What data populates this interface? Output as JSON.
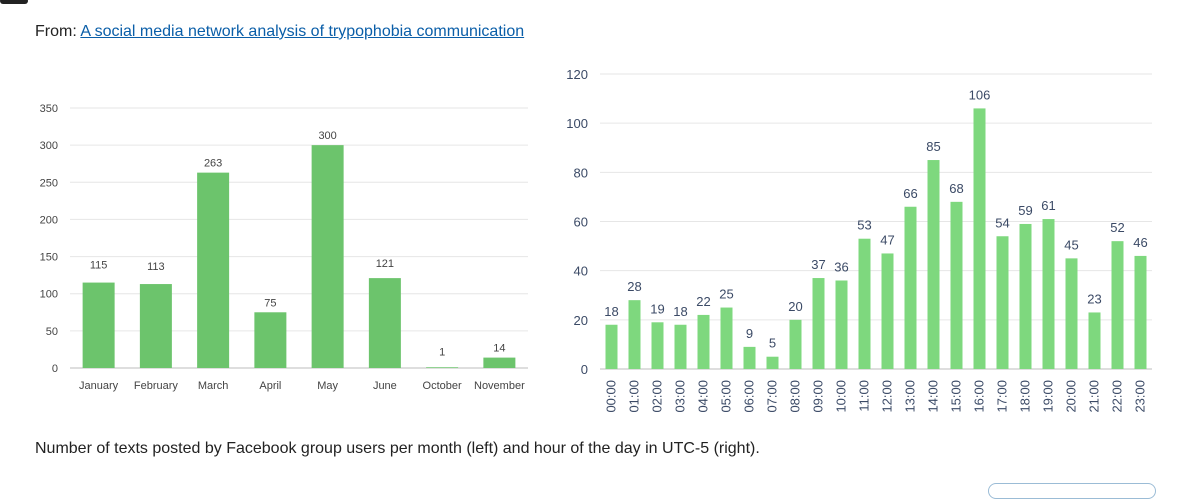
{
  "header": {
    "from_label": "From: ",
    "link_text": "A social media network analysis of trypophobia communication"
  },
  "caption": "Number of texts posted by Facebook group users per month (left) and hour of the day in UTC-5 (right).",
  "colors": {
    "bar_left": "#6cc46c",
    "bar_right": "#7ed87e",
    "grid": "#e6e6e6",
    "left_text": "#444444",
    "right_text": "#3b4a66",
    "link": "#0a5ea8"
  },
  "chart_data": [
    {
      "type": "bar",
      "categories": [
        "January",
        "February",
        "March",
        "April",
        "May",
        "June",
        "October",
        "November"
      ],
      "values": [
        115,
        113,
        263,
        75,
        300,
        121,
        1,
        14
      ],
      "yticks": [
        0,
        50,
        100,
        150,
        200,
        250,
        300,
        350
      ],
      "ylim": [
        0,
        350
      ],
      "grid": true
    },
    {
      "type": "bar",
      "categories": [
        "00:00",
        "01:00",
        "02:00",
        "03:00",
        "04:00",
        "05:00",
        "06:00",
        "07:00",
        "08:00",
        "09:00",
        "10:00",
        "11:00",
        "12:00",
        "13:00",
        "14:00",
        "15:00",
        "16:00",
        "17:00",
        "18:00",
        "19:00",
        "20:00",
        "21:00",
        "22:00",
        "23:00"
      ],
      "values": [
        18,
        28,
        19,
        18,
        22,
        25,
        9,
        5,
        20,
        37,
        36,
        53,
        47,
        66,
        85,
        68,
        106,
        54,
        59,
        61,
        45,
        23,
        52,
        46
      ],
      "yticks": [
        0,
        20,
        40,
        60,
        80,
        100,
        120
      ],
      "ylim": [
        0,
        120
      ],
      "grid": true
    }
  ]
}
